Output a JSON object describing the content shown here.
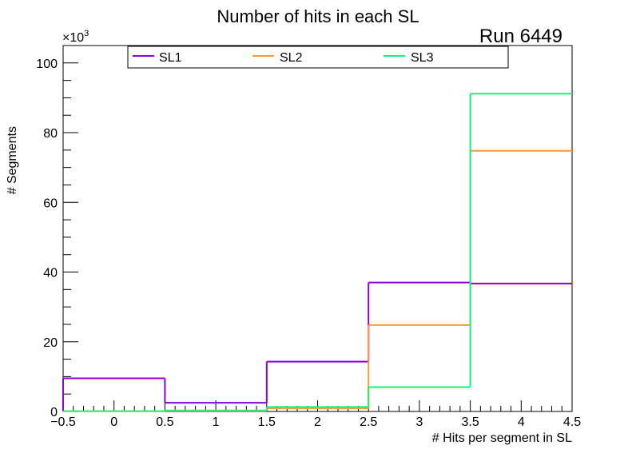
{
  "chart_data": {
    "type": "histogram",
    "title": "Number of hits in each SL",
    "run_label": "Run 6449",
    "xlabel": "# Hits per segment in SL",
    "ylabel": "# Segments",
    "y_multiplier": "×10",
    "y_multiplier_exp": "3",
    "xlim": [
      -0.5,
      4.5
    ],
    "ylim": [
      0,
      105
    ],
    "x_ticks": [
      -0.5,
      0,
      0.5,
      1,
      1.5,
      2,
      2.5,
      3,
      3.5,
      4,
      4.5
    ],
    "x_tick_labels": [
      "−0.5",
      "0",
      "0.5",
      "1",
      "1.5",
      "2",
      "2.5",
      "3",
      "3.5",
      "4",
      "4.5"
    ],
    "y_ticks": [
      0,
      20,
      40,
      60,
      80,
      100
    ],
    "y_tick_labels": [
      "0",
      "20",
      "40",
      "60",
      "80",
      "100"
    ],
    "bin_edges": [
      -0.5,
      0.5,
      1.5,
      2.5,
      3.5,
      4.5
    ],
    "series": [
      {
        "name": "SL1",
        "color": "#8a00e0",
        "values": [
          9.5,
          2.5,
          14.3,
          37.0,
          36.7
        ]
      },
      {
        "name": "SL2",
        "color": "#ff9933",
        "values": [
          0.1,
          0.2,
          0.9,
          24.8,
          74.8
        ]
      },
      {
        "name": "SL3",
        "color": "#19f07a",
        "values": [
          0.1,
          0.3,
          1.3,
          7.0,
          91.2
        ]
      }
    ],
    "legend_position": "top"
  }
}
